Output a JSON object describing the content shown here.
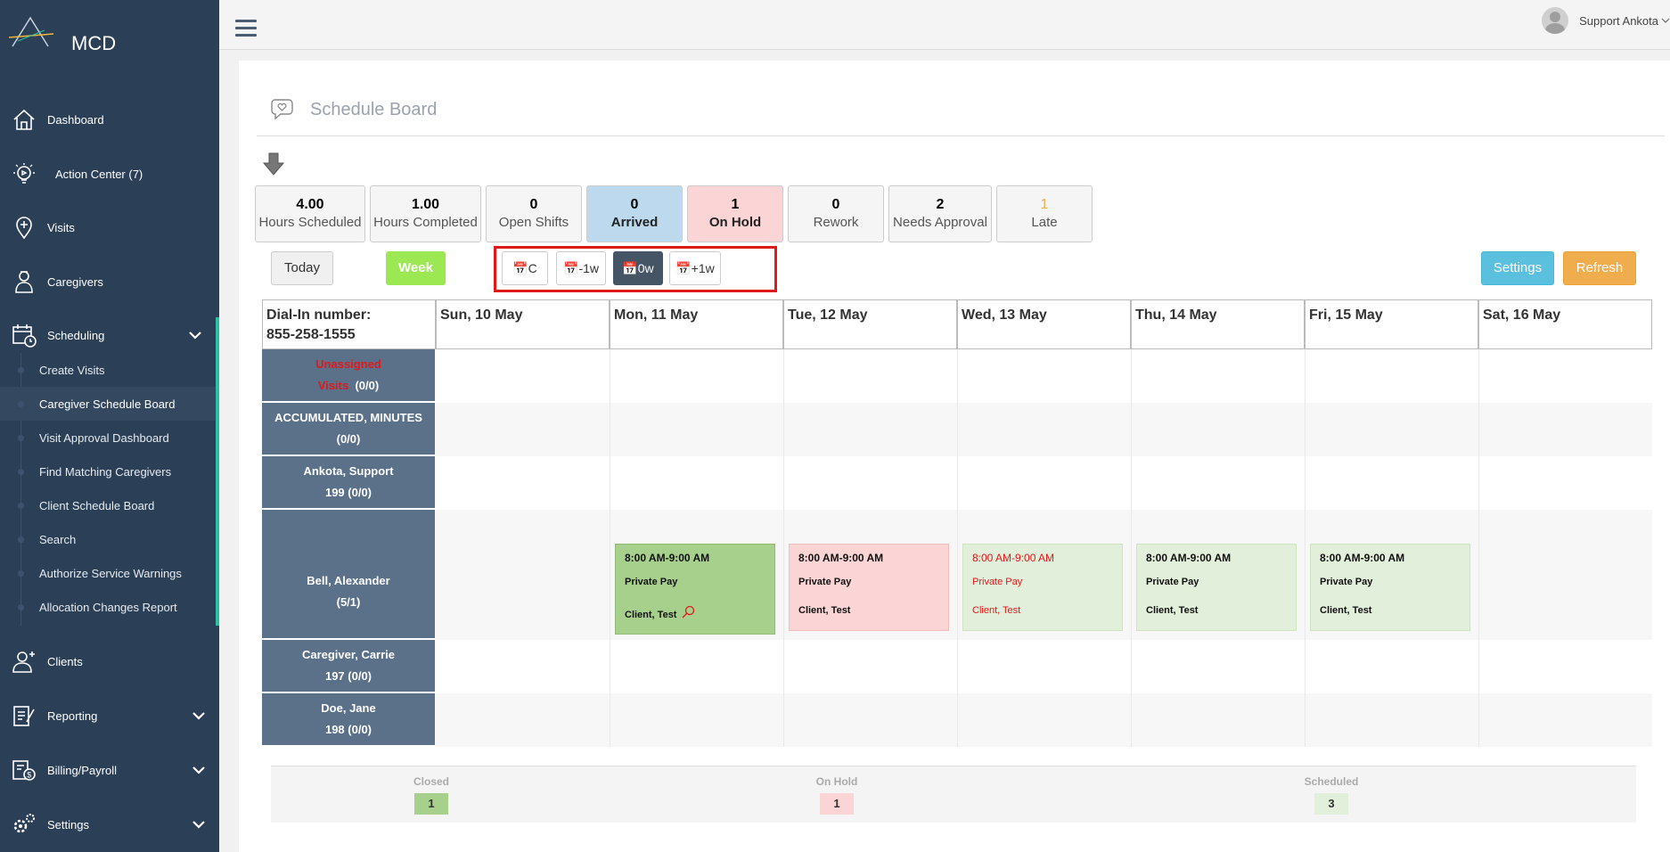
{
  "app": {
    "logo_text": "MCD"
  },
  "sidebar": {
    "items": [
      {
        "label": "Dashboard"
      },
      {
        "label": "Action Center (7)"
      },
      {
        "label": "Visits"
      },
      {
        "label": "Caregivers"
      },
      {
        "label": "Scheduling"
      },
      {
        "label": "Clients"
      },
      {
        "label": "Reporting"
      },
      {
        "label": "Billing/Payroll"
      },
      {
        "label": "Settings"
      }
    ],
    "scheduling_sub": [
      {
        "label": "Create Visits"
      },
      {
        "label": "Caregiver Schedule Board"
      },
      {
        "label": "Visit Approval Dashboard"
      },
      {
        "label": "Find Matching Caregivers"
      },
      {
        "label": "Client Schedule Board"
      },
      {
        "label": "Search"
      },
      {
        "label": "Authorize Service Warnings"
      },
      {
        "label": "Allocation Changes Report"
      }
    ]
  },
  "topbar": {
    "user_name": "Support Ankota"
  },
  "page": {
    "title": "Schedule Board"
  },
  "stats": [
    {
      "value": "4.00",
      "label": "Hours Scheduled"
    },
    {
      "value": "1.00",
      "label": "Hours Completed"
    },
    {
      "value": "0",
      "label": "Open Shifts"
    },
    {
      "value": "0",
      "label": "Arrived"
    },
    {
      "value": "1",
      "label": "On Hold"
    },
    {
      "value": "0",
      "label": "Rework"
    },
    {
      "value": "2",
      "label": "Needs Approval"
    },
    {
      "value": "1",
      "label": "Late"
    }
  ],
  "controls": {
    "today": "Today",
    "week": "Week",
    "nav": [
      "C",
      "-1w",
      "0w",
      "+1w"
    ],
    "settings": "Settings",
    "refresh": "Refresh"
  },
  "grid": {
    "dial_in_label": "Dial-In number:",
    "dial_in_number": "855-258-1555",
    "days": [
      "Sun, 10 May",
      "Mon, 11 May",
      "Tue, 12 May",
      "Wed, 13 May",
      "Thu, 14 May",
      "Fri, 15 May",
      "Sat, 16 May"
    ],
    "rows": [
      {
        "line1": "Unassigned",
        "line2a": "Visits",
        "line2b": "(0/0)"
      },
      {
        "line1": "ACCUMULATED, MINUTES",
        "line2": "(0/0)"
      },
      {
        "line1": "Ankota, Support",
        "line2": "199  (0/0)"
      },
      {
        "line1": "Bell, Alexander",
        "line2": "(5/1)"
      },
      {
        "line1": "Caregiver, Carrie",
        "line2": "197  (0/0)"
      },
      {
        "line1": "Doe, Jane",
        "line2": "198  (0/0)"
      }
    ],
    "visits": [
      {
        "time": "8:00 AM-9:00 AM",
        "payer": "Private Pay",
        "client": "Client, Test",
        "status": "closed"
      },
      {
        "time": "8:00 AM-9:00 AM",
        "payer": "Private Pay",
        "client": "Client, Test",
        "status": "on-hold"
      },
      {
        "time": "8:00 AM-9:00 AM",
        "payer": "Private Pay",
        "client": "Client, Test",
        "status": "late"
      },
      {
        "time": "8:00 AM-9:00 AM",
        "payer": "Private Pay",
        "client": "Client, Test",
        "status": "scheduled"
      },
      {
        "time": "8:00 AM-9:00 AM",
        "payer": "Private Pay",
        "client": "Client, Test",
        "status": "scheduled"
      }
    ]
  },
  "legend": [
    {
      "label": "Closed",
      "count": "1",
      "color": "#a8d08d"
    },
    {
      "label": "On Hold",
      "count": "1",
      "color": "#fbd5d5"
    },
    {
      "label": "Scheduled",
      "count": "3",
      "color": "#e2efda"
    }
  ],
  "colors": {
    "sidebar_bg": "#2b3f57",
    "accent": "#2bc0a0",
    "row_label_bg": "#5b7189",
    "arrived_bg": "#bcd9ee",
    "on_hold_bg": "#fbd5d5",
    "late_text": "#f0ad4e",
    "alert_red": "#e0191b"
  }
}
